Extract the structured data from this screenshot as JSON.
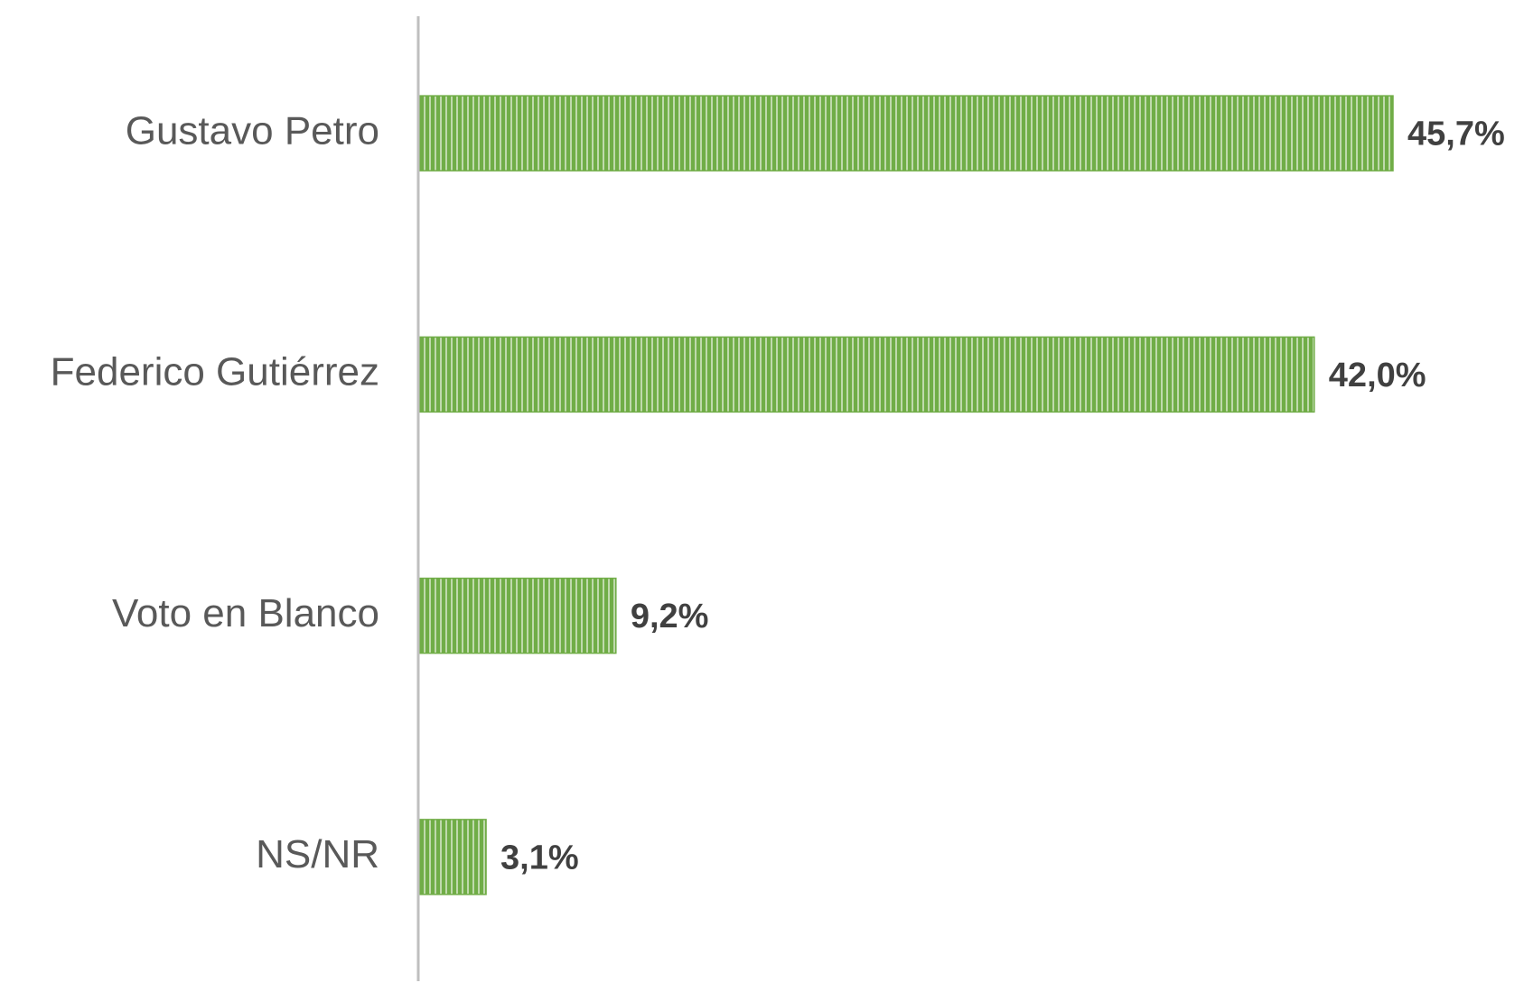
{
  "chart_data": {
    "type": "bar",
    "orientation": "horizontal",
    "categories": [
      "Gustavo Petro",
      "Federico Gutiérrez",
      "Voto en Blanco",
      "NS/NR"
    ],
    "values": [
      45.7,
      42.0,
      9.2,
      3.1
    ],
    "value_labels": [
      "45,7%",
      "42,0%",
      "9,2%",
      "3,1%"
    ],
    "color": "#70ad47"
  }
}
